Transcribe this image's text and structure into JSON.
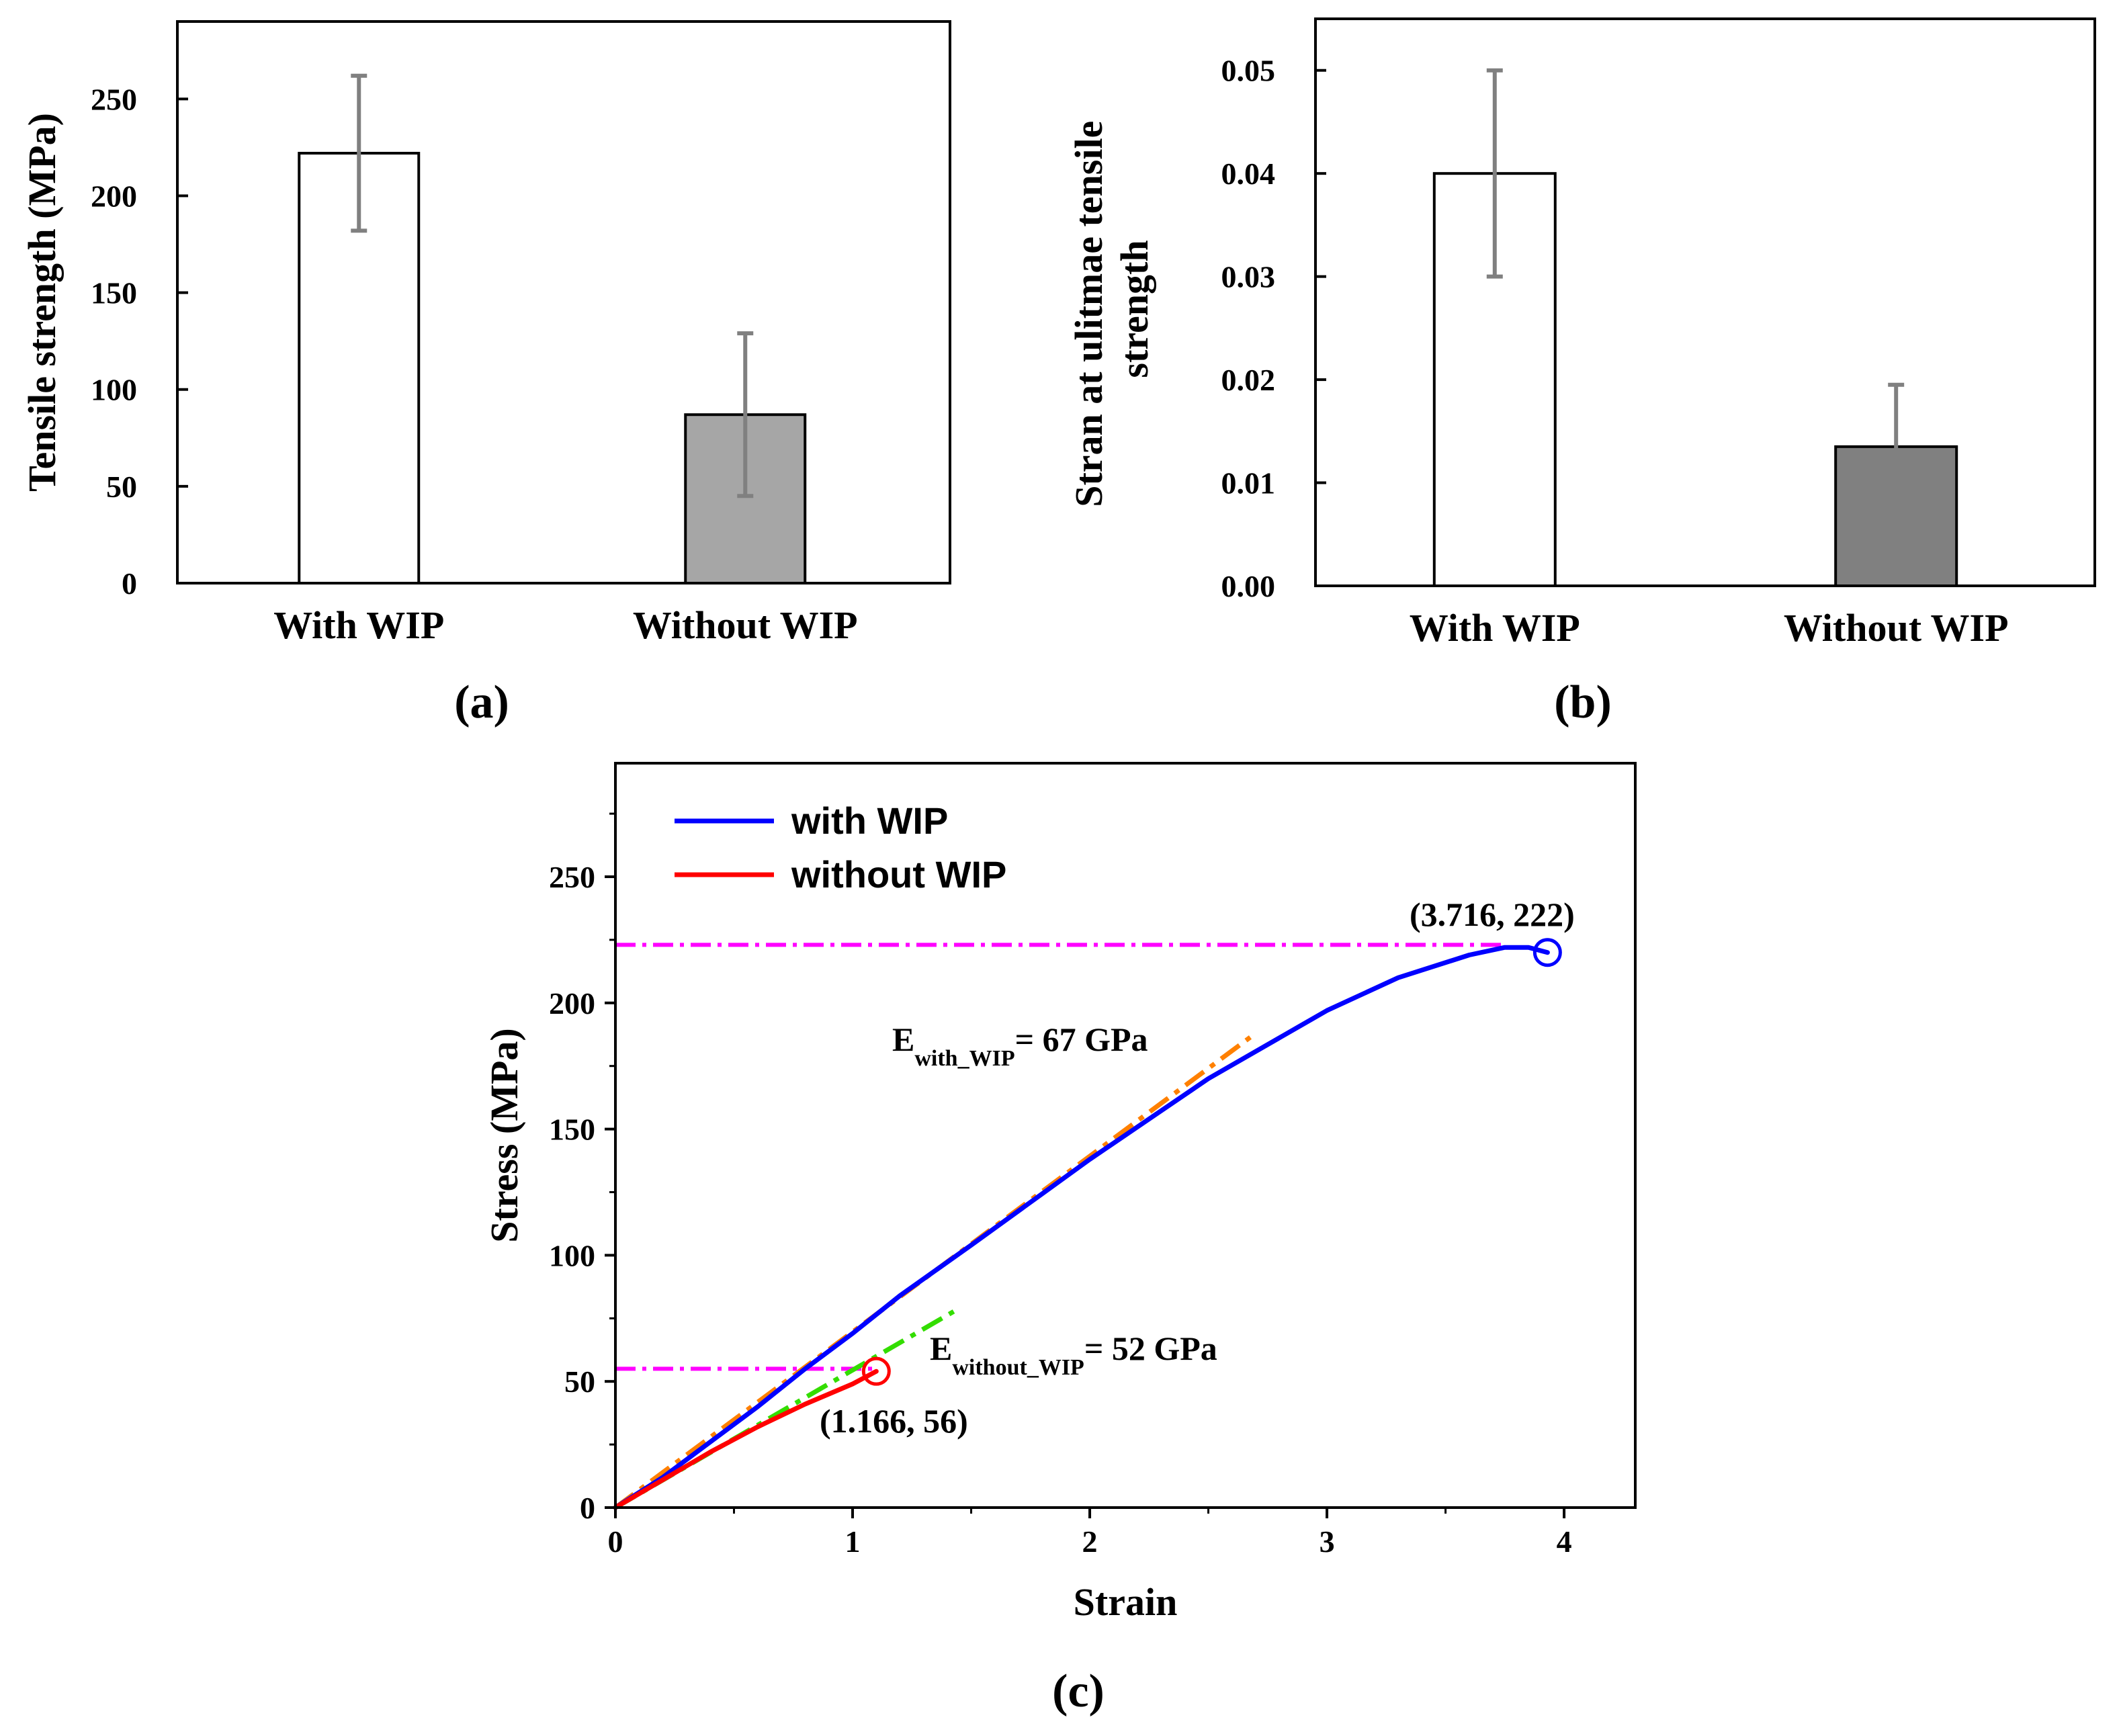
{
  "chart_data": [
    {
      "id": "a",
      "type": "bar",
      "panel_label": "(a)",
      "categories": [
        "With WIP",
        "Without WIP"
      ],
      "values": [
        222,
        87
      ],
      "errors": [
        40,
        42
      ],
      "bar_colors": [
        "#ffffff",
        "#a6a6a6"
      ],
      "error_color": "#808080",
      "xlabel": "",
      "ylabel": "Tensile strength (MPa)",
      "ylim": [
        0,
        290
      ],
      "yticks": [
        0,
        50,
        100,
        150,
        200,
        250
      ],
      "ytick_labels": [
        "0",
        "50",
        "100",
        "150",
        "200",
        "250"
      ]
    },
    {
      "id": "b",
      "type": "bar",
      "panel_label": "(b)",
      "categories": [
        "With WIP",
        "Without WIP"
      ],
      "values": [
        0.04,
        0.0135
      ],
      "errors": [
        0.01,
        0.006
      ],
      "bar_colors": [
        "#ffffff",
        "#808080"
      ],
      "error_color": "#808080",
      "xlabel": "",
      "ylabel": "Stran at ulitmae tensile strength",
      "ylabel_lines": [
        "Stran at ulitmae tensile",
        "strength"
      ],
      "ylim": [
        0,
        0.055
      ],
      "yticks": [
        0,
        0.01,
        0.02,
        0.03,
        0.04,
        0.05
      ],
      "ytick_labels": [
        "0.00",
        "0.01",
        "0.02",
        "0.03",
        "0.04",
        "0.05"
      ]
    },
    {
      "id": "c",
      "type": "line",
      "panel_label": "(c)",
      "xlabel": "Strain",
      "ylabel": "Stress (MPa)",
      "xlim": [
        0,
        4.3
      ],
      "ylim": [
        0,
        295
      ],
      "xticks": [
        0,
        1,
        2,
        3,
        4
      ],
      "xtick_labels": [
        "0",
        "1",
        "2",
        "3",
        "4"
      ],
      "yticks": [
        0,
        50,
        100,
        150,
        200,
        250
      ],
      "ytick_labels": [
        "0",
        "50",
        "100",
        "150",
        "200",
        "250"
      ],
      "series": [
        {
          "name": "with WIP",
          "color": "#0000ff",
          "x": [
            0,
            0.2,
            0.4,
            0.6,
            0.8,
            1.0,
            1.2,
            1.5,
            2.0,
            2.5,
            3.0,
            3.3,
            3.6,
            3.75,
            3.85,
            3.93
          ],
          "y": [
            0,
            12,
            26,
            40,
            55,
            69,
            84,
            104,
            138,
            170,
            197,
            210,
            219,
            222,
            222,
            220
          ]
        },
        {
          "name": "without WIP",
          "color": "#ff0000",
          "x": [
            0,
            0.2,
            0.4,
            0.6,
            0.8,
            1.0,
            1.1
          ],
          "y": [
            0,
            11,
            22,
            32,
            41,
            49,
            54
          ]
        }
      ],
      "fit_lines": [
        {
          "name": "E_with_WIP fit",
          "color": "#ff8000",
          "x": [
            0,
            2.7
          ],
          "y": [
            0,
            188
          ]
        },
        {
          "name": "E_without_WIP fit",
          "color": "#33dd00",
          "x": [
            0,
            1.45
          ],
          "y": [
            0,
            79
          ]
        }
      ],
      "hlines": [
        {
          "color": "#ff00ff",
          "y": 223,
          "x_end": 3.75
        },
        {
          "color": "#ff00ff",
          "y": 55,
          "x_end": 1.1
        }
      ],
      "markers": [
        {
          "color": "#0000ff",
          "x": 3.93,
          "y": 220
        },
        {
          "color": "#ff0000",
          "x": 1.1,
          "y": 54
        }
      ],
      "annotations": {
        "max_with": "(3.716, 222)",
        "max_without": "(1.166, 56)",
        "e_with": {
          "main": "E",
          "sub": "with_WIP",
          "rest": "= 67 GPa"
        },
        "e_without": {
          "main": "E",
          "sub": "without_WIP",
          "rest": "= 52 GPa"
        }
      }
    }
  ]
}
